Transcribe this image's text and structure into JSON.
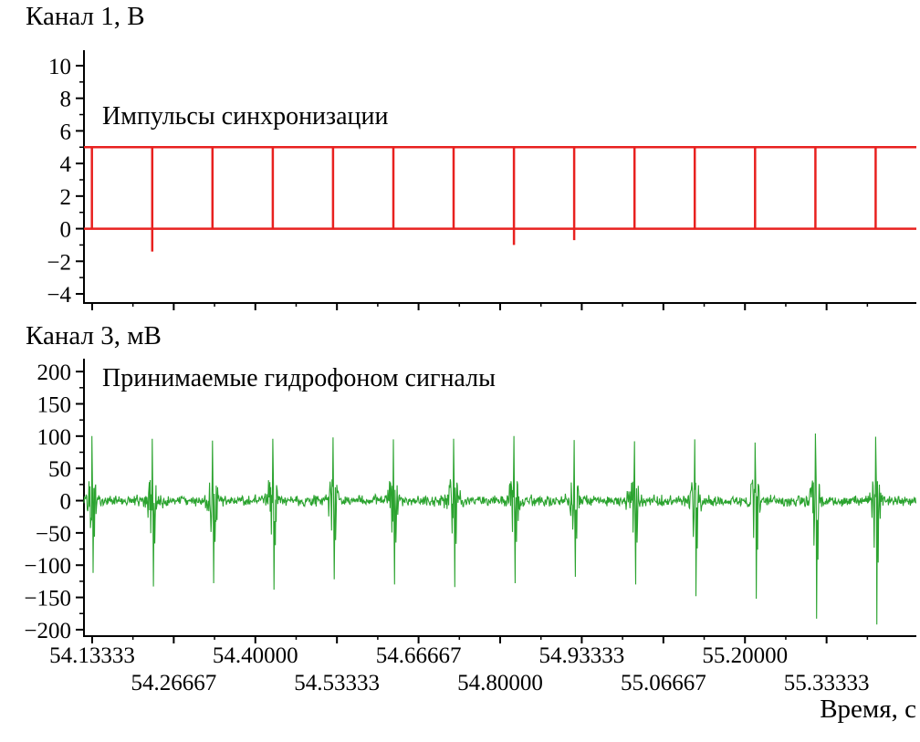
{
  "figure": {
    "background": "#ffffff",
    "axis_color": "#000000"
  },
  "x_axis": {
    "xlabel": "Время, с",
    "xlim": [
      54.12,
      55.48
    ],
    "ticks_major": [
      54.13333,
      54.26667,
      54.4,
      54.53333,
      54.66667,
      54.8,
      54.93333,
      55.06667,
      55.2,
      55.33333
    ],
    "ticks_minor": [
      54.2,
      54.33333,
      54.46667,
      54.6,
      54.73333,
      54.86667,
      55.0,
      55.13333,
      55.26667,
      55.4
    ],
    "labels": [
      {
        "text": "54.13333",
        "value": 54.13333,
        "row": 1
      },
      {
        "text": "54.26667",
        "value": 54.26667,
        "row": 2
      },
      {
        "text": "54.40000",
        "value": 54.4,
        "row": 1
      },
      {
        "text": "54.53333",
        "value": 54.53333,
        "row": 2
      },
      {
        "text": "54.66667",
        "value": 54.66667,
        "row": 1
      },
      {
        "text": "54.80000",
        "value": 54.8,
        "row": 2
      },
      {
        "text": "54.93333",
        "value": 54.93333,
        "row": 1
      },
      {
        "text": "55.06667",
        "value": 55.06667,
        "row": 2
      },
      {
        "text": "55.20000",
        "value": 55.2,
        "row": 1
      },
      {
        "text": "55.33333",
        "value": 55.33333,
        "row": 2
      }
    ]
  },
  "chart_data": [
    {
      "type": "line",
      "title": "Канал 1, В",
      "annotation": "Импульсы синхронизации",
      "ylabel_units": "В",
      "color": "#e8211f",
      "ylim": [
        -4.56,
        10.95
      ],
      "yticks_major": [
        10,
        8,
        6,
        4,
        2,
        0,
        -2,
        -4
      ],
      "yticks_minor": [
        9,
        7,
        5,
        3,
        1,
        -1,
        -3
      ],
      "signal": {
        "kind": "sync-pulse-train",
        "high_level_V": 5,
        "low_level_V": 0,
        "pulse_period_s": 0.0985,
        "pulse_times_s": [
          54.133,
          54.2315,
          54.33,
          54.4285,
          54.527,
          54.6255,
          54.724,
          54.8225,
          54.921,
          55.0195,
          55.118,
          55.2165,
          55.315,
          55.4135
        ],
        "undershoots": [
          {
            "t": 54.2315,
            "v": -1.4
          },
          {
            "t": 54.8225,
            "v": -1.0
          },
          {
            "t": 54.921,
            "v": -0.7
          }
        ]
      }
    },
    {
      "type": "line",
      "title": "Канал 3, мВ",
      "annotation": "Принимаемые гидрофоном сигналы",
      "ylabel_units": "мВ",
      "color": "#2ba32f",
      "ylim": [
        -210,
        220
      ],
      "yticks_major": [
        200,
        150,
        100,
        50,
        0,
        -50,
        -100,
        -150,
        -200
      ],
      "yticks_minor": [
        175,
        125,
        75,
        25,
        -25,
        -75,
        -125,
        -175
      ],
      "signal": {
        "kind": "hydrophone-bursts",
        "noise_level_mV": 10,
        "bursts": [
          {
            "t": 54.133,
            "pos": 100,
            "neg": -112
          },
          {
            "t": 54.2315,
            "pos": 96,
            "neg": -133
          },
          {
            "t": 54.33,
            "pos": 93,
            "neg": -128
          },
          {
            "t": 54.4285,
            "pos": 96,
            "neg": -138
          },
          {
            "t": 54.527,
            "pos": 98,
            "neg": -122
          },
          {
            "t": 54.6255,
            "pos": 95,
            "neg": -130
          },
          {
            "t": 54.724,
            "pos": 96,
            "neg": -134
          },
          {
            "t": 54.8225,
            "pos": 100,
            "neg": -128
          },
          {
            "t": 54.921,
            "pos": 94,
            "neg": -118
          },
          {
            "t": 55.0195,
            "pos": 92,
            "neg": -130
          },
          {
            "t": 55.118,
            "pos": 95,
            "neg": -148
          },
          {
            "t": 55.2165,
            "pos": 90,
            "neg": -152
          },
          {
            "t": 55.315,
            "pos": 104,
            "neg": -183
          },
          {
            "t": 55.4135,
            "pos": 99,
            "neg": -192
          }
        ]
      }
    }
  ]
}
